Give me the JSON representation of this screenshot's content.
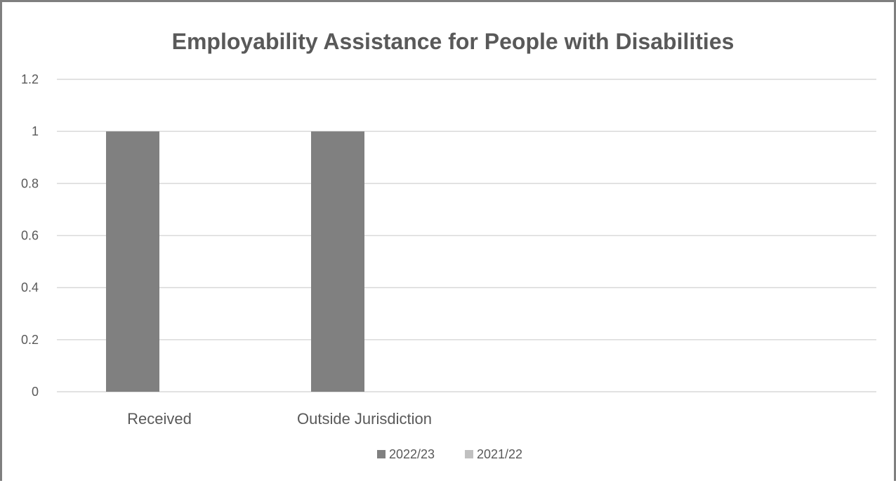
{
  "chart_data": {
    "type": "bar",
    "title": "Employability Assistance for People with Disabilities",
    "xlabel": "",
    "ylabel": "",
    "categories": [
      "Received",
      "Outside Jurisdiction"
    ],
    "series": [
      {
        "name": "2022/23",
        "values": [
          1,
          1
        ],
        "color": "#808080"
      },
      {
        "name": "2021/22",
        "values": [
          0,
          0
        ],
        "color": "#c0c0c0"
      }
    ],
    "ylim": [
      0,
      1.2
    ],
    "yticks": [
      "0",
      "0.2",
      "0.4",
      "0.6",
      "0.8",
      "1",
      "1.2"
    ],
    "grid": true,
    "legend_position": "bottom"
  }
}
